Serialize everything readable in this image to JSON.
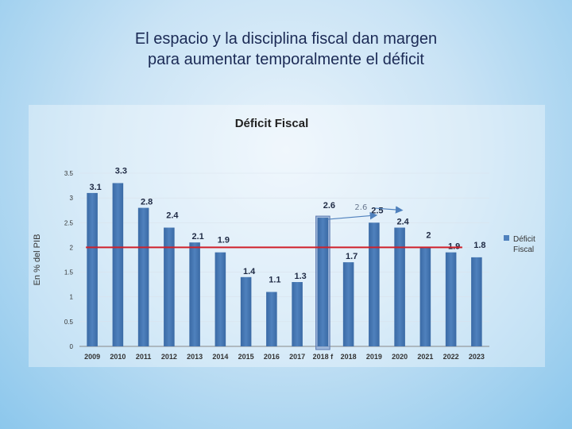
{
  "slide": {
    "title_line1": "El espacio y la disciplina fiscal dan margen",
    "title_line2": "para aumentar temporalmente el déficit"
  },
  "chart_data": {
    "type": "bar",
    "title": "Déficit Fiscal",
    "ylabel": "En % del PIB",
    "xlabel": "",
    "ylim": [
      0,
      3.5
    ],
    "yticks": [
      "0",
      "0.5",
      "1",
      "1.5",
      "2",
      "2.5",
      "3",
      "3.5"
    ],
    "categories": [
      "2009",
      "2010",
      "2011",
      "2012",
      "2013",
      "2014",
      "2015",
      "2016",
      "2017",
      "2018 f",
      "2018",
      "2019",
      "2020",
      "2021",
      "2022",
      "2023"
    ],
    "series": [
      {
        "name": "Déficit Fiscal",
        "values": [
          3.1,
          3.3,
          2.8,
          2.4,
          2.1,
          1.9,
          1.4,
          1.1,
          1.3,
          2.6,
          1.7,
          2.5,
          2.4,
          2,
          1.9,
          1.8
        ]
      }
    ],
    "data_labels": [
      "3.1",
      "3.3",
      "2.8",
      "2.4",
      "2.1",
      "1.9",
      "1.4",
      "1.1",
      "1.3",
      "2.6",
      "1.7",
      "2.5",
      "2.4",
      "2",
      "1.9",
      "1.8"
    ],
    "legend": [
      "Déficit",
      "Fiscal"
    ],
    "legend_position": "right",
    "reference_line": {
      "value": 2.0,
      "color": "#d0202a"
    },
    "highlight_category": "2018 f",
    "annotation": {
      "text": "2.6",
      "from_category": "2018 f",
      "to_category": "2020"
    },
    "colors": {
      "bar": "#4f81bd",
      "bar_dark": "#3a6aa5",
      "highlight": "#7f9ccc",
      "axis_text": "#333333"
    }
  }
}
